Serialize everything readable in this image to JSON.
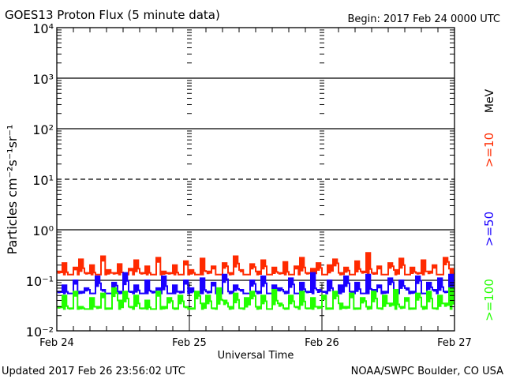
{
  "chart_data": {
    "type": "line",
    "title": "GOES13 Proton Flux (5 minute data)",
    "begin_label": "Begin: 2017 Feb 24 0000 UTC",
    "xlabel": "Universal Time",
    "ylabel": "Particles cm⁻²s⁻¹sr⁻¹",
    "yscale": "log",
    "ylim": [
      0.01,
      10000
    ],
    "ytick_labels": [
      "10⁻²",
      "10⁻¹",
      "10⁰",
      "10¹",
      "10²",
      "10³",
      "10⁴"
    ],
    "xlim_hours": [
      0,
      72
    ],
    "xtick_labels": [
      "Feb 24",
      "Feb 25",
      "Feb 26",
      "Feb 27"
    ],
    "grid": "solid lines at each decade, dashed at 10^1",
    "x_hours_step": 1,
    "series": [
      {
        "name": ">=10 MeV",
        "label": ">=10",
        "unit": "MeV",
        "color": "#ff2a00",
        "values": [
          0.15,
          0.22,
          0.13,
          0.18,
          0.26,
          0.14,
          0.2,
          0.13,
          0.3,
          0.16,
          0.14,
          0.21,
          0.13,
          0.17,
          0.25,
          0.14,
          0.19,
          0.13,
          0.28,
          0.15,
          0.14,
          0.2,
          0.13,
          0.24,
          0.16,
          0.13,
          0.27,
          0.15,
          0.19,
          0.13,
          0.22,
          0.14,
          0.3,
          0.16,
          0.13,
          0.21,
          0.15,
          0.25,
          0.13,
          0.18,
          0.14,
          0.23,
          0.13,
          0.19,
          0.28,
          0.14,
          0.17,
          0.22,
          0.13,
          0.2,
          0.26,
          0.14,
          0.18,
          0.13,
          0.24,
          0.15,
          0.35,
          0.14,
          0.19,
          0.13,
          0.22,
          0.16,
          0.27,
          0.13,
          0.18,
          0.14,
          0.25,
          0.15,
          0.2,
          0.13,
          0.28,
          0.17
        ]
      },
      {
        "name": ">=50 MeV",
        "label": ">=50",
        "color": "#1a00ff",
        "values": [
          0.06,
          0.08,
          0.055,
          0.1,
          0.06,
          0.07,
          0.055,
          0.12,
          0.065,
          0.055,
          0.09,
          0.06,
          0.14,
          0.06,
          0.08,
          0.055,
          0.1,
          0.06,
          0.07,
          0.12,
          0.055,
          0.08,
          0.06,
          0.1,
          0.07,
          0.055,
          0.11,
          0.06,
          0.09,
          0.055,
          0.13,
          0.06,
          0.08,
          0.065,
          0.055,
          0.1,
          0.06,
          0.12,
          0.055,
          0.08,
          0.07,
          0.06,
          0.11,
          0.055,
          0.09,
          0.06,
          0.14,
          0.065,
          0.06,
          0.1,
          0.055,
          0.08,
          0.12,
          0.06,
          0.09,
          0.055,
          0.13,
          0.065,
          0.08,
          0.06,
          0.11,
          0.055,
          0.1,
          0.07,
          0.06,
          0.12,
          0.055,
          0.09,
          0.065,
          0.11,
          0.06,
          0.13
        ]
      },
      {
        "name": ">=100 MeV",
        "label": ">=100",
        "color": "#22ff00",
        "values": [
          0.03,
          0.05,
          0.028,
          0.06,
          0.03,
          0.027,
          0.045,
          0.03,
          0.055,
          0.028,
          0.07,
          0.04,
          0.06,
          0.03,
          0.05,
          0.028,
          0.04,
          0.027,
          0.06,
          0.03,
          0.045,
          0.028,
          0.05,
          0.03,
          0.028,
          0.06,
          0.035,
          0.05,
          0.028,
          0.07,
          0.04,
          0.03,
          0.055,
          0.028,
          0.045,
          0.06,
          0.03,
          0.05,
          0.027,
          0.065,
          0.035,
          0.028,
          0.05,
          0.03,
          0.06,
          0.028,
          0.045,
          0.03,
          0.05,
          0.028,
          0.06,
          0.035,
          0.03,
          0.055,
          0.028,
          0.045,
          0.03,
          0.06,
          0.028,
          0.05,
          0.035,
          0.065,
          0.03,
          0.045,
          0.028,
          0.055,
          0.03,
          0.06,
          0.028,
          0.05,
          0.035,
          0.07
        ]
      }
    ]
  },
  "footer": {
    "updated": "Updated 2017 Feb 26 23:56:02 UTC",
    "source": "NOAA/SWPC Boulder, CO USA"
  }
}
